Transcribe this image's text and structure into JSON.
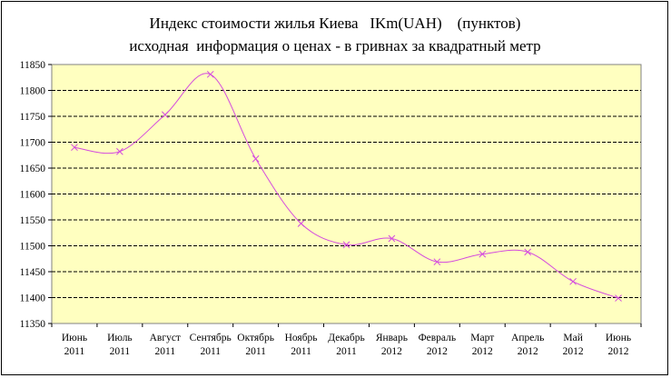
{
  "chart_data": {
    "type": "line",
    "title_line1": "Индекс стоимости жилья Киева   IKm(UAH)    (пунктов)",
    "title_line2": "исходная  информация о ценах - в гривнах за квадратный метр",
    "categories": [
      [
        "Июнь",
        "2011"
      ],
      [
        "Июль",
        "2011"
      ],
      [
        "Август",
        "2011"
      ],
      [
        "Сентябрь",
        "2011"
      ],
      [
        "Октябрь",
        "2011"
      ],
      [
        "Ноябрь",
        "2011"
      ],
      [
        "Декабрь",
        "2011"
      ],
      [
        "Январь",
        "2012"
      ],
      [
        "Февраль",
        "2012"
      ],
      [
        "Март",
        "2012"
      ],
      [
        "Апрель",
        "2012"
      ],
      [
        "Май",
        "2012"
      ],
      [
        "Июнь",
        "2012"
      ]
    ],
    "series": [
      {
        "values": [
          11690,
          11682,
          11753,
          11831,
          11668,
          11543,
          11502,
          11514,
          11469,
          11484,
          11488,
          11431,
          11399
        ]
      }
    ],
    "ylim": [
      11350,
      11850
    ],
    "yticks": [
      11350,
      11400,
      11450,
      11500,
      11550,
      11600,
      11650,
      11700,
      11750,
      11800,
      11850
    ],
    "grid": true,
    "legend": "none",
    "colors": {
      "plot_background": "#ffffc0",
      "line": "#d44bde",
      "gridline": "#000000"
    }
  }
}
